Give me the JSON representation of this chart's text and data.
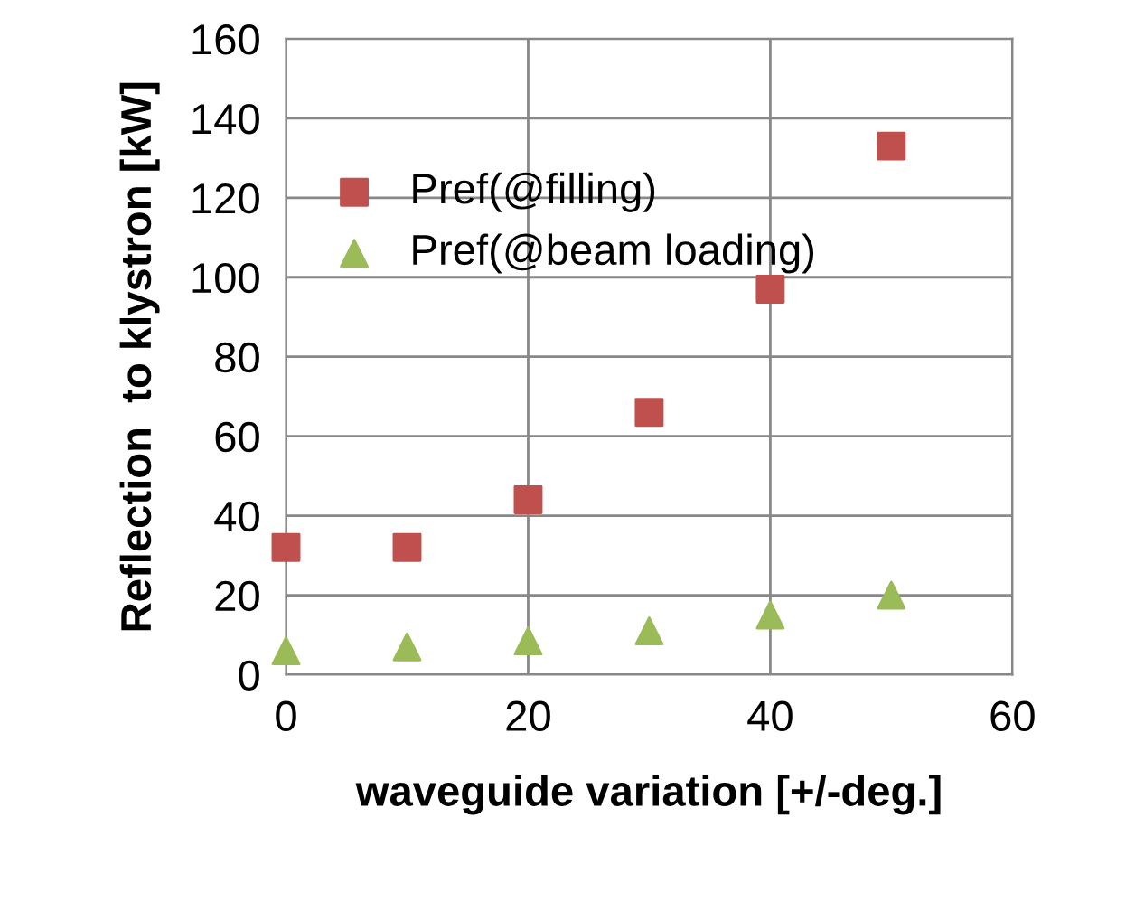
{
  "chart_data": {
    "type": "scatter",
    "xlabel": "waveguide variation [+/-deg.]",
    "ylabel": "Reflection  to klystron [kW]",
    "x": [
      0,
      10,
      20,
      30,
      40,
      50
    ],
    "series": [
      {
        "name": "Pref(@filling)",
        "color": "#c0504d",
        "marker": "square",
        "values": [
          32,
          32,
          44,
          66,
          97,
          133
        ]
      },
      {
        "name": "Pref(@beam loading)",
        "color": "#9bbb59",
        "marker": "triangle",
        "values": [
          6,
          7,
          8.5,
          11,
          15,
          20
        ]
      }
    ],
    "xlim": [
      0,
      60
    ],
    "xticks": [
      0,
      20,
      40,
      60
    ],
    "ylim": [
      0,
      160
    ],
    "yticks": [
      0,
      20,
      40,
      60,
      80,
      100,
      120,
      140,
      160
    ],
    "grid": true,
    "legend": "upper left"
  }
}
